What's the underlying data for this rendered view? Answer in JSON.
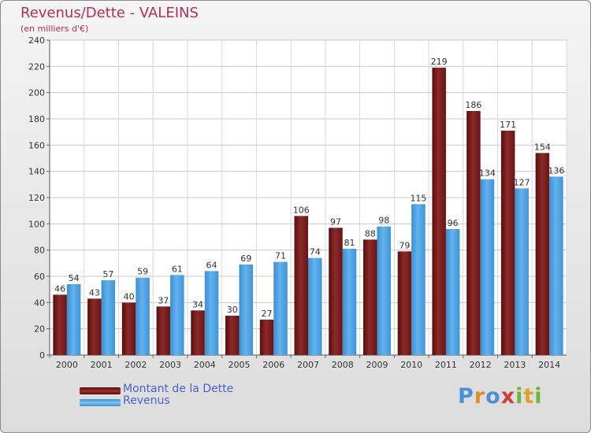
{
  "title": "Revenus/Dette - VALEINS",
  "subtitle": "(en milliers d'€)",
  "logo_text": "Proxiti",
  "colors": {
    "debt": "#7a1a1a",
    "debt_light": "#a84848",
    "revenue": "#4a9fe0",
    "revenue_light": "#6ab8f0",
    "title": "#b03060",
    "legend_text": "#4b61d1"
  },
  "legend": [
    {
      "label": "Montant de la Dette"
    },
    {
      "label": "Revenus"
    }
  ],
  "chart_data": {
    "type": "bar",
    "categories": [
      "2000",
      "2001",
      "2002",
      "2003",
      "2004",
      "2005",
      "2006",
      "2007",
      "2008",
      "2009",
      "2010",
      "2011",
      "2012",
      "2013",
      "2014"
    ],
    "series": [
      {
        "name": "Montant de la Dette",
        "values": [
          46,
          43,
          40,
          37,
          34,
          30,
          27,
          106,
          97,
          88,
          79,
          219,
          186,
          171,
          154
        ]
      },
      {
        "name": "Revenus",
        "values": [
          54,
          57,
          59,
          61,
          64,
          69,
          71,
          74,
          81,
          98,
          115,
          96,
          134,
          127,
          136
        ]
      }
    ],
    "title": "Revenus/Dette - VALEINS",
    "subtitle": "(en milliers d'€)",
    "xlabel": "",
    "ylabel": "",
    "ylim": [
      0,
      240
    ],
    "yticks": [
      0,
      20,
      40,
      60,
      80,
      100,
      120,
      140,
      160,
      180,
      200,
      220,
      240
    ],
    "grid": true,
    "legend_position": "bottom-left"
  }
}
